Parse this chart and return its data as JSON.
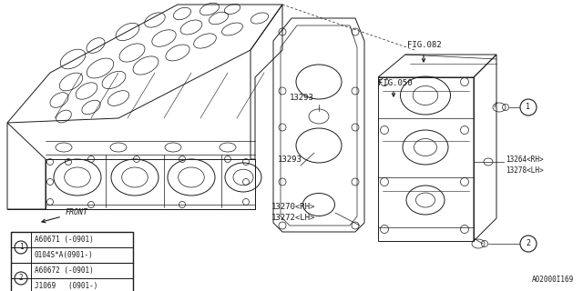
{
  "background_color": "#ffffff",
  "line_color": "#1a1a1a",
  "fig_width": 6.4,
  "fig_height": 3.2,
  "dpi": 100,
  "labels": {
    "13293_upper": "13293",
    "13293_lower": "13293",
    "13270": "13270〈RH〉",
    "13272": "13272〈LH〉",
    "13264": "13264〈RH〉",
    "13278": "13278〈LH〉",
    "fig082": "FIG.082",
    "fig050": "FIG.050",
    "front": "FRONT"
  },
  "legend": [
    {
      "num": "1",
      "row1": "A60671 (-0901)",
      "row2": "0104S*A(0901-)"
    },
    {
      "num": "2",
      "row1": "A60672 (-0901)",
      "row2": "J1069   (0901-)"
    }
  ],
  "diagram_id": "A02000I169"
}
